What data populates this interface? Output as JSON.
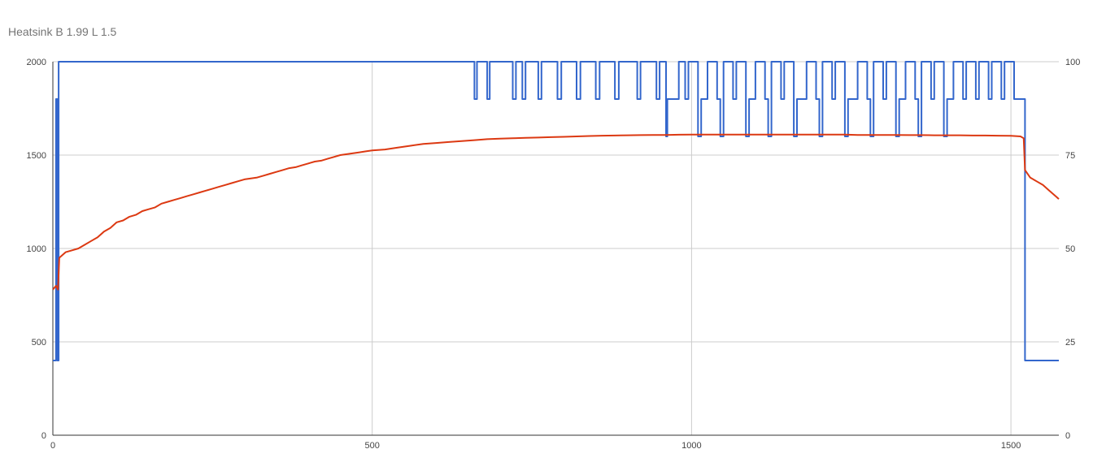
{
  "chart_data": {
    "type": "line",
    "title": "Heatsink B 1.99 L 1.5",
    "xlabel": "",
    "ylabel": "",
    "xlim": [
      0,
      1575
    ],
    "ylim_left": [
      0,
      2000
    ],
    "ylim_right": [
      0,
      100
    ],
    "x_ticks": [
      "0",
      "500",
      "1000",
      "1500"
    ],
    "y_left_ticks": [
      "0",
      "500",
      "1000",
      "1500",
      "2000"
    ],
    "y_right_ticks": [
      "0",
      "25",
      "50",
      "75",
      "100"
    ],
    "grid": true,
    "legend": "none",
    "series": [
      {
        "axis": "right",
        "color": "#3366cc",
        "points": [
          [
            0,
            20
          ],
          [
            5,
            20
          ],
          [
            5,
            90
          ],
          [
            7,
            90
          ],
          [
            7,
            20
          ],
          [
            9,
            20
          ],
          [
            9,
            100
          ],
          [
            660,
            100
          ],
          [
            660,
            90
          ],
          [
            664,
            90
          ],
          [
            664,
            100
          ],
          [
            680,
            100
          ],
          [
            680,
            90
          ],
          [
            684,
            90
          ],
          [
            684,
            100
          ],
          [
            720,
            100
          ],
          [
            720,
            90
          ],
          [
            725,
            90
          ],
          [
            725,
            100
          ],
          [
            735,
            100
          ],
          [
            735,
            90
          ],
          [
            740,
            90
          ],
          [
            740,
            100
          ],
          [
            760,
            100
          ],
          [
            760,
            90
          ],
          [
            765,
            90
          ],
          [
            765,
            100
          ],
          [
            790,
            100
          ],
          [
            790,
            90
          ],
          [
            796,
            90
          ],
          [
            796,
            100
          ],
          [
            820,
            100
          ],
          [
            820,
            90
          ],
          [
            826,
            90
          ],
          [
            826,
            100
          ],
          [
            850,
            100
          ],
          [
            850,
            90
          ],
          [
            856,
            90
          ],
          [
            856,
            100
          ],
          [
            880,
            100
          ],
          [
            880,
            90
          ],
          [
            886,
            90
          ],
          [
            886,
            100
          ],
          [
            915,
            100
          ],
          [
            915,
            90
          ],
          [
            920,
            90
          ],
          [
            920,
            100
          ],
          [
            945,
            100
          ],
          [
            945,
            90
          ],
          [
            950,
            90
          ],
          [
            950,
            100
          ],
          [
            960,
            100
          ],
          [
            960,
            80
          ],
          [
            962,
            80
          ],
          [
            962,
            90
          ],
          [
            980,
            90
          ],
          [
            980,
            100
          ],
          [
            990,
            100
          ],
          [
            990,
            90
          ],
          [
            995,
            90
          ],
          [
            995,
            100
          ],
          [
            1010,
            100
          ],
          [
            1010,
            80
          ],
          [
            1015,
            80
          ],
          [
            1015,
            90
          ],
          [
            1025,
            90
          ],
          [
            1025,
            100
          ],
          [
            1040,
            100
          ],
          [
            1040,
            90
          ],
          [
            1045,
            90
          ],
          [
            1045,
            80
          ],
          [
            1050,
            80
          ],
          [
            1050,
            100
          ],
          [
            1065,
            100
          ],
          [
            1065,
            90
          ],
          [
            1070,
            90
          ],
          [
            1070,
            100
          ],
          [
            1085,
            100
          ],
          [
            1085,
            80
          ],
          [
            1090,
            80
          ],
          [
            1090,
            90
          ],
          [
            1100,
            90
          ],
          [
            1100,
            100
          ],
          [
            1115,
            100
          ],
          [
            1115,
            90
          ],
          [
            1120,
            90
          ],
          [
            1120,
            80
          ],
          [
            1125,
            80
          ],
          [
            1125,
            100
          ],
          [
            1140,
            100
          ],
          [
            1140,
            90
          ],
          [
            1145,
            90
          ],
          [
            1145,
            100
          ],
          [
            1160,
            100
          ],
          [
            1160,
            80
          ],
          [
            1165,
            80
          ],
          [
            1165,
            90
          ],
          [
            1180,
            90
          ],
          [
            1180,
            100
          ],
          [
            1195,
            100
          ],
          [
            1195,
            90
          ],
          [
            1200,
            90
          ],
          [
            1200,
            80
          ],
          [
            1205,
            80
          ],
          [
            1205,
            100
          ],
          [
            1220,
            100
          ],
          [
            1220,
            90
          ],
          [
            1225,
            90
          ],
          [
            1225,
            100
          ],
          [
            1240,
            100
          ],
          [
            1240,
            80
          ],
          [
            1245,
            80
          ],
          [
            1245,
            90
          ],
          [
            1260,
            90
          ],
          [
            1260,
            100
          ],
          [
            1275,
            100
          ],
          [
            1275,
            90
          ],
          [
            1280,
            90
          ],
          [
            1280,
            80
          ],
          [
            1285,
            80
          ],
          [
            1285,
            100
          ],
          [
            1300,
            100
          ],
          [
            1300,
            90
          ],
          [
            1305,
            90
          ],
          [
            1305,
            100
          ],
          [
            1320,
            100
          ],
          [
            1320,
            80
          ],
          [
            1325,
            80
          ],
          [
            1325,
            90
          ],
          [
            1335,
            90
          ],
          [
            1335,
            100
          ],
          [
            1350,
            100
          ],
          [
            1350,
            90
          ],
          [
            1355,
            90
          ],
          [
            1355,
            80
          ],
          [
            1360,
            80
          ],
          [
            1360,
            100
          ],
          [
            1375,
            100
          ],
          [
            1375,
            90
          ],
          [
            1380,
            90
          ],
          [
            1380,
            100
          ],
          [
            1395,
            100
          ],
          [
            1395,
            80
          ],
          [
            1400,
            80
          ],
          [
            1400,
            90
          ],
          [
            1410,
            90
          ],
          [
            1410,
            100
          ],
          [
            1425,
            100
          ],
          [
            1425,
            90
          ],
          [
            1430,
            90
          ],
          [
            1430,
            100
          ],
          [
            1445,
            100
          ],
          [
            1445,
            90
          ],
          [
            1450,
            90
          ],
          [
            1450,
            100
          ],
          [
            1465,
            100
          ],
          [
            1465,
            90
          ],
          [
            1470,
            90
          ],
          [
            1470,
            100
          ],
          [
            1485,
            100
          ],
          [
            1485,
            90
          ],
          [
            1490,
            90
          ],
          [
            1490,
            100
          ],
          [
            1505,
            100
          ],
          [
            1505,
            90
          ],
          [
            1522,
            90
          ],
          [
            1522,
            20
          ],
          [
            1575,
            20
          ]
        ]
      },
      {
        "axis": "left",
        "color": "#dc3912",
        "points": [
          [
            0,
            780
          ],
          [
            5,
            800
          ],
          [
            8,
            780
          ],
          [
            10,
            950
          ],
          [
            20,
            980
          ],
          [
            30,
            990
          ],
          [
            40,
            1000
          ],
          [
            50,
            1020
          ],
          [
            60,
            1040
          ],
          [
            70,
            1060
          ],
          [
            80,
            1090
          ],
          [
            90,
            1110
          ],
          [
            100,
            1140
          ],
          [
            110,
            1150
          ],
          [
            120,
            1170
          ],
          [
            130,
            1180
          ],
          [
            140,
            1200
          ],
          [
            150,
            1210
          ],
          [
            160,
            1220
          ],
          [
            170,
            1240
          ],
          [
            180,
            1250
          ],
          [
            190,
            1260
          ],
          [
            200,
            1270
          ],
          [
            210,
            1280
          ],
          [
            220,
            1290
          ],
          [
            230,
            1300
          ],
          [
            240,
            1310
          ],
          [
            250,
            1320
          ],
          [
            260,
            1330
          ],
          [
            270,
            1340
          ],
          [
            280,
            1350
          ],
          [
            290,
            1360
          ],
          [
            300,
            1370
          ],
          [
            310,
            1375
          ],
          [
            320,
            1380
          ],
          [
            330,
            1390
          ],
          [
            340,
            1400
          ],
          [
            350,
            1410
          ],
          [
            360,
            1420
          ],
          [
            370,
            1430
          ],
          [
            380,
            1435
          ],
          [
            390,
            1445
          ],
          [
            400,
            1455
          ],
          [
            410,
            1465
          ],
          [
            420,
            1470
          ],
          [
            430,
            1480
          ],
          [
            440,
            1490
          ],
          [
            450,
            1500
          ],
          [
            460,
            1505
          ],
          [
            470,
            1510
          ],
          [
            480,
            1515
          ],
          [
            490,
            1520
          ],
          [
            500,
            1525
          ],
          [
            520,
            1530
          ],
          [
            540,
            1540
          ],
          [
            560,
            1550
          ],
          [
            580,
            1560
          ],
          [
            600,
            1565
          ],
          [
            620,
            1570
          ],
          [
            640,
            1575
          ],
          [
            660,
            1580
          ],
          [
            680,
            1585
          ],
          [
            700,
            1588
          ],
          [
            720,
            1590
          ],
          [
            740,
            1592
          ],
          [
            760,
            1594
          ],
          [
            780,
            1596
          ],
          [
            800,
            1598
          ],
          [
            820,
            1600
          ],
          [
            840,
            1602
          ],
          [
            860,
            1604
          ],
          [
            880,
            1605
          ],
          [
            900,
            1606
          ],
          [
            920,
            1607
          ],
          [
            940,
            1608
          ],
          [
            960,
            1608
          ],
          [
            980,
            1609
          ],
          [
            1000,
            1610
          ],
          [
            1020,
            1610
          ],
          [
            1040,
            1610
          ],
          [
            1060,
            1610
          ],
          [
            1080,
            1610
          ],
          [
            1100,
            1610
          ],
          [
            1120,
            1610
          ],
          [
            1140,
            1610
          ],
          [
            1160,
            1610
          ],
          [
            1180,
            1610
          ],
          [
            1200,
            1610
          ],
          [
            1220,
            1610
          ],
          [
            1240,
            1610
          ],
          [
            1260,
            1608
          ],
          [
            1280,
            1608
          ],
          [
            1300,
            1608
          ],
          [
            1320,
            1608
          ],
          [
            1340,
            1607
          ],
          [
            1360,
            1607
          ],
          [
            1380,
            1606
          ],
          [
            1400,
            1606
          ],
          [
            1420,
            1606
          ],
          [
            1440,
            1605
          ],
          [
            1460,
            1605
          ],
          [
            1480,
            1604
          ],
          [
            1500,
            1603
          ],
          [
            1515,
            1600
          ],
          [
            1520,
            1590
          ],
          [
            1522,
            1420
          ],
          [
            1530,
            1380
          ],
          [
            1540,
            1360
          ],
          [
            1550,
            1340
          ],
          [
            1560,
            1310
          ],
          [
            1570,
            1280
          ],
          [
            1575,
            1265
          ]
        ]
      }
    ]
  }
}
